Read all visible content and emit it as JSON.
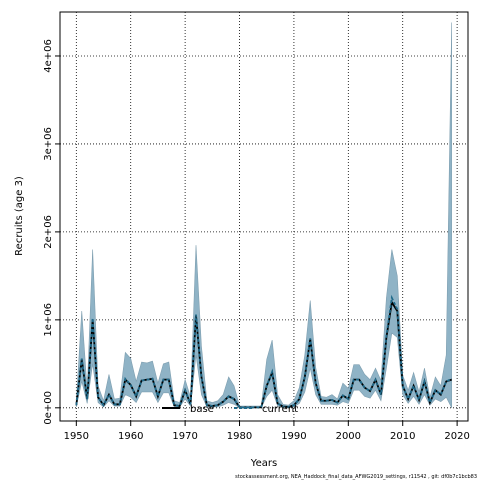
{
  "chart_data": {
    "type": "area",
    "xlabel": "Years",
    "ylabel": "Recruits (age 3)",
    "xlim": [
      1947,
      2022
    ],
    "ylim": [
      -150000,
      4500000
    ],
    "x_ticks": [
      1950,
      1960,
      1970,
      1980,
      1990,
      2000,
      2010,
      2020
    ],
    "x_tick_labels": [
      "1950",
      "1960",
      "1970",
      "1980",
      "1990",
      "2000",
      "2010",
      "2020"
    ],
    "y_ticks": [
      0,
      1000000,
      2000000,
      3000000,
      4000000
    ],
    "y_tick_labels": [
      "0e+00",
      "1e+06",
      "2e+06",
      "3e+06",
      "4e+06"
    ],
    "grid": true,
    "grid_style": "dotted",
    "legend": {
      "placement": "bottom-center",
      "entries": [
        {
          "name": "base",
          "style": "solid",
          "color": "#000000"
        },
        {
          "name": "current",
          "style": "dashed",
          "color": "#1f6a8a"
        }
      ]
    },
    "footer_note": "stockassessment.org, NEA_Haddock_final_data_AFWG2019_settings, r11542 , git: df0b7c1bcb83",
    "band_color": "#8fb3c6",
    "band_edge_color": "#7f9fb0",
    "years": [
      1950,
      1951,
      1952,
      1953,
      1954,
      1955,
      1956,
      1957,
      1958,
      1959,
      1960,
      1961,
      1962,
      1963,
      1964,
      1965,
      1966,
      1967,
      1968,
      1969,
      1970,
      1971,
      1972,
      1973,
      1974,
      1975,
      1976,
      1977,
      1978,
      1979,
      1980,
      1981,
      1982,
      1983,
      1984,
      1985,
      1986,
      1987,
      1988,
      1989,
      1990,
      1991,
      1992,
      1993,
      1994,
      1995,
      1996,
      1997,
      1998,
      1999,
      2000,
      2001,
      2002,
      2003,
      2004,
      2005,
      2006,
      2007,
      2008,
      2009,
      2010,
      2011,
      2012,
      2013,
      2014,
      2015,
      2016,
      2017,
      2018,
      2019
    ],
    "series": [
      {
        "name": "base",
        "values": [
          30000,
          550000,
          100000,
          1000000,
          120000,
          30000,
          150000,
          40000,
          40000,
          320000,
          260000,
          130000,
          310000,
          320000,
          330000,
          130000,
          320000,
          320000,
          30000,
          20000,
          200000,
          40000,
          1050000,
          350000,
          30000,
          20000,
          30000,
          70000,
          130000,
          100000,
          5000,
          5000,
          5000,
          5000,
          5000,
          250000,
          400000,
          50000,
          15000,
          10000,
          30000,
          100000,
          350000,
          780000,
          280000,
          80000,
          80000,
          90000,
          60000,
          140000,
          100000,
          320000,
          320000,
          230000,
          190000,
          320000,
          150000,
          800000,
          1200000,
          1100000,
          250000,
          100000,
          250000,
          90000,
          300000,
          60000,
          200000,
          150000,
          300000,
          320000
        ]
      },
      {
        "name": "current",
        "values": [
          30000,
          560000,
          100000,
          1020000,
          120000,
          30000,
          150000,
          40000,
          40000,
          330000,
          260000,
          130000,
          310000,
          320000,
          330000,
          130000,
          320000,
          320000,
          30000,
          20000,
          200000,
          40000,
          1060000,
          350000,
          30000,
          20000,
          30000,
          70000,
          130000,
          100000,
          5000,
          5000,
          5000,
          5000,
          5000,
          250000,
          410000,
          50000,
          15000,
          10000,
          30000,
          100000,
          350000,
          790000,
          280000,
          80000,
          80000,
          90000,
          60000,
          140000,
          100000,
          320000,
          320000,
          230000,
          190000,
          320000,
          150000,
          820000,
          1250000,
          1120000,
          250000,
          100000,
          250000,
          90000,
          300000,
          60000,
          200000,
          150000,
          300000,
          330000
        ]
      }
    ],
    "band_lower": [
      10000,
      300000,
      50000,
      500000,
      60000,
      10000,
      80000,
      20000,
      20000,
      150000,
      120000,
      60000,
      180000,
      180000,
      180000,
      60000,
      170000,
      170000,
      10000,
      10000,
      100000,
      20000,
      600000,
      150000,
      10000,
      10000,
      10000,
      30000,
      60000,
      40000,
      2000,
      2000,
      2000,
      2000,
      2000,
      130000,
      200000,
      20000,
      5000,
      5000,
      10000,
      50000,
      180000,
      450000,
      150000,
      40000,
      40000,
      40000,
      30000,
      70000,
      50000,
      200000,
      200000,
      130000,
      110000,
      200000,
      80000,
      450000,
      850000,
      800000,
      150000,
      50000,
      130000,
      40000,
      150000,
      30000,
      100000,
      70000,
      120000,
      0
    ],
    "band_upper": [
      80000,
      1100000,
      200000,
      1800000,
      250000,
      80000,
      380000,
      100000,
      110000,
      630000,
      560000,
      300000,
      520000,
      510000,
      530000,
      280000,
      500000,
      520000,
      80000,
      60000,
      320000,
      120000,
      1850000,
      700000,
      80000,
      60000,
      80000,
      150000,
      350000,
      250000,
      20000,
      20000,
      20000,
      20000,
      20000,
      550000,
      770000,
      150000,
      40000,
      30000,
      80000,
      230000,
      600000,
      1220000,
      460000,
      130000,
      120000,
      150000,
      100000,
      280000,
      220000,
      490000,
      490000,
      380000,
      320000,
      450000,
      310000,
      1250000,
      1800000,
      1500000,
      370000,
      200000,
      400000,
      180000,
      450000,
      120000,
      350000,
      250000,
      600000,
      4380000
    ]
  }
}
